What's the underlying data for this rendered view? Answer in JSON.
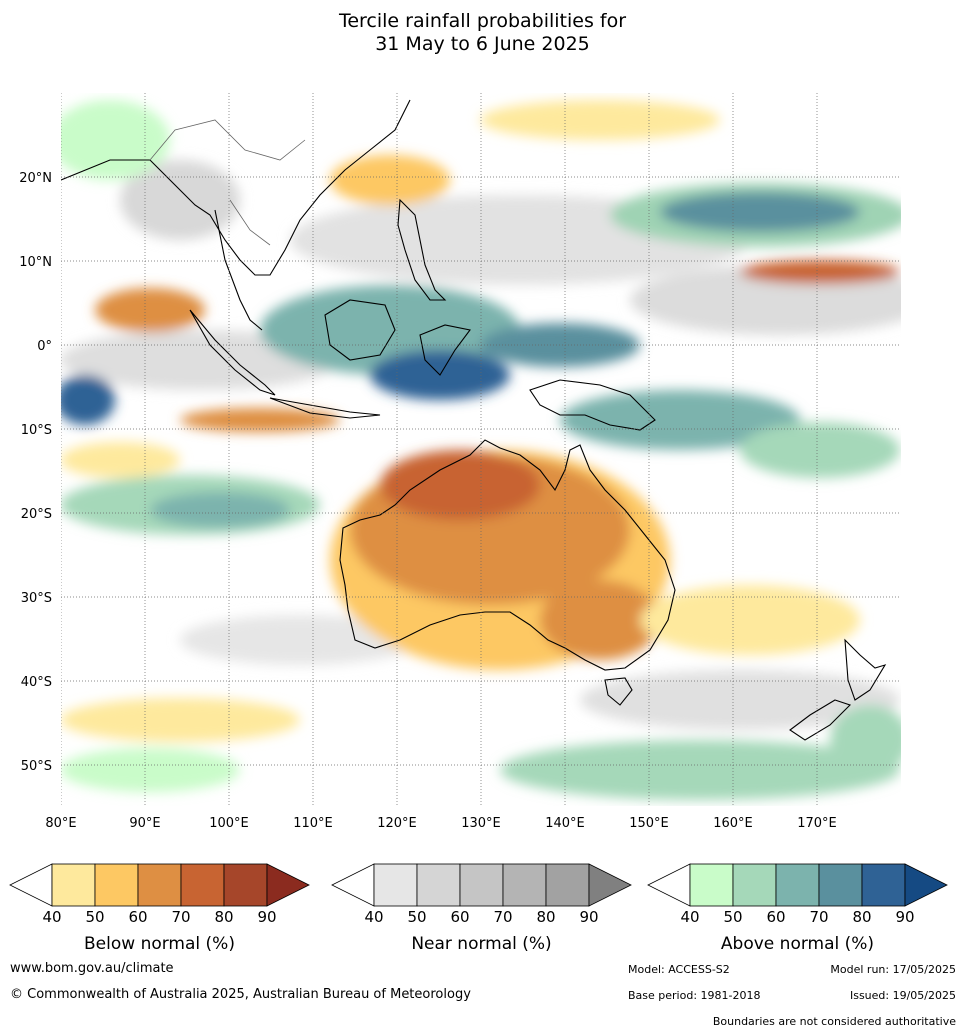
{
  "title_line1": "Tercile rainfall probabilities for",
  "title_line2": "31 May to 6 June 2025",
  "lat_labels": [
    "20°N",
    "10°N",
    "0°",
    "10°S",
    "20°S",
    "30°S",
    "40°S",
    "50°S"
  ],
  "lon_labels": [
    "80°E",
    "90°E",
    "100°E",
    "110°E",
    "120°E",
    "130°E",
    "140°E",
    "150°E",
    "160°E",
    "170°E"
  ],
  "legends": [
    {
      "caption": "Below normal (%)",
      "ticks": [
        "40",
        "50",
        "60",
        "70",
        "80",
        "90"
      ],
      "colors": [
        "#ffffff",
        "#fee99d",
        "#fdc863",
        "#de8f43",
        "#c86432",
        "#a6462a",
        "#8b2b1f"
      ]
    },
    {
      "caption": "Near normal (%)",
      "ticks": [
        "40",
        "50",
        "60",
        "70",
        "80",
        "90"
      ],
      "colors": [
        "#ffffff",
        "#e6e6e6",
        "#d5d5d5",
        "#c5c5c5",
        "#b4b4b4",
        "#a2a2a2",
        "#808080"
      ]
    },
    {
      "caption": "Above normal (%)",
      "ticks": [
        "40",
        "50",
        "60",
        "70",
        "80",
        "90"
      ],
      "colors": [
        "#ffffff",
        "#c9fcc9",
        "#a5d8b9",
        "#7cb3ad",
        "#5a909e",
        "#2f6295",
        "#154a83"
      ]
    }
  ],
  "footer": {
    "website": "www.bom.gov.au/climate",
    "copyright": "© Commonwealth of Australia 2025, Australian Bureau of Meteorology",
    "model": "Model: ACCESS-S2",
    "model_run": "Model run: 17/05/2025",
    "base_period": "Base period: 1981-2018",
    "issued": "Issued: 19/05/2025",
    "disclaimer": "Boundaries are not considered authoritative"
  }
}
